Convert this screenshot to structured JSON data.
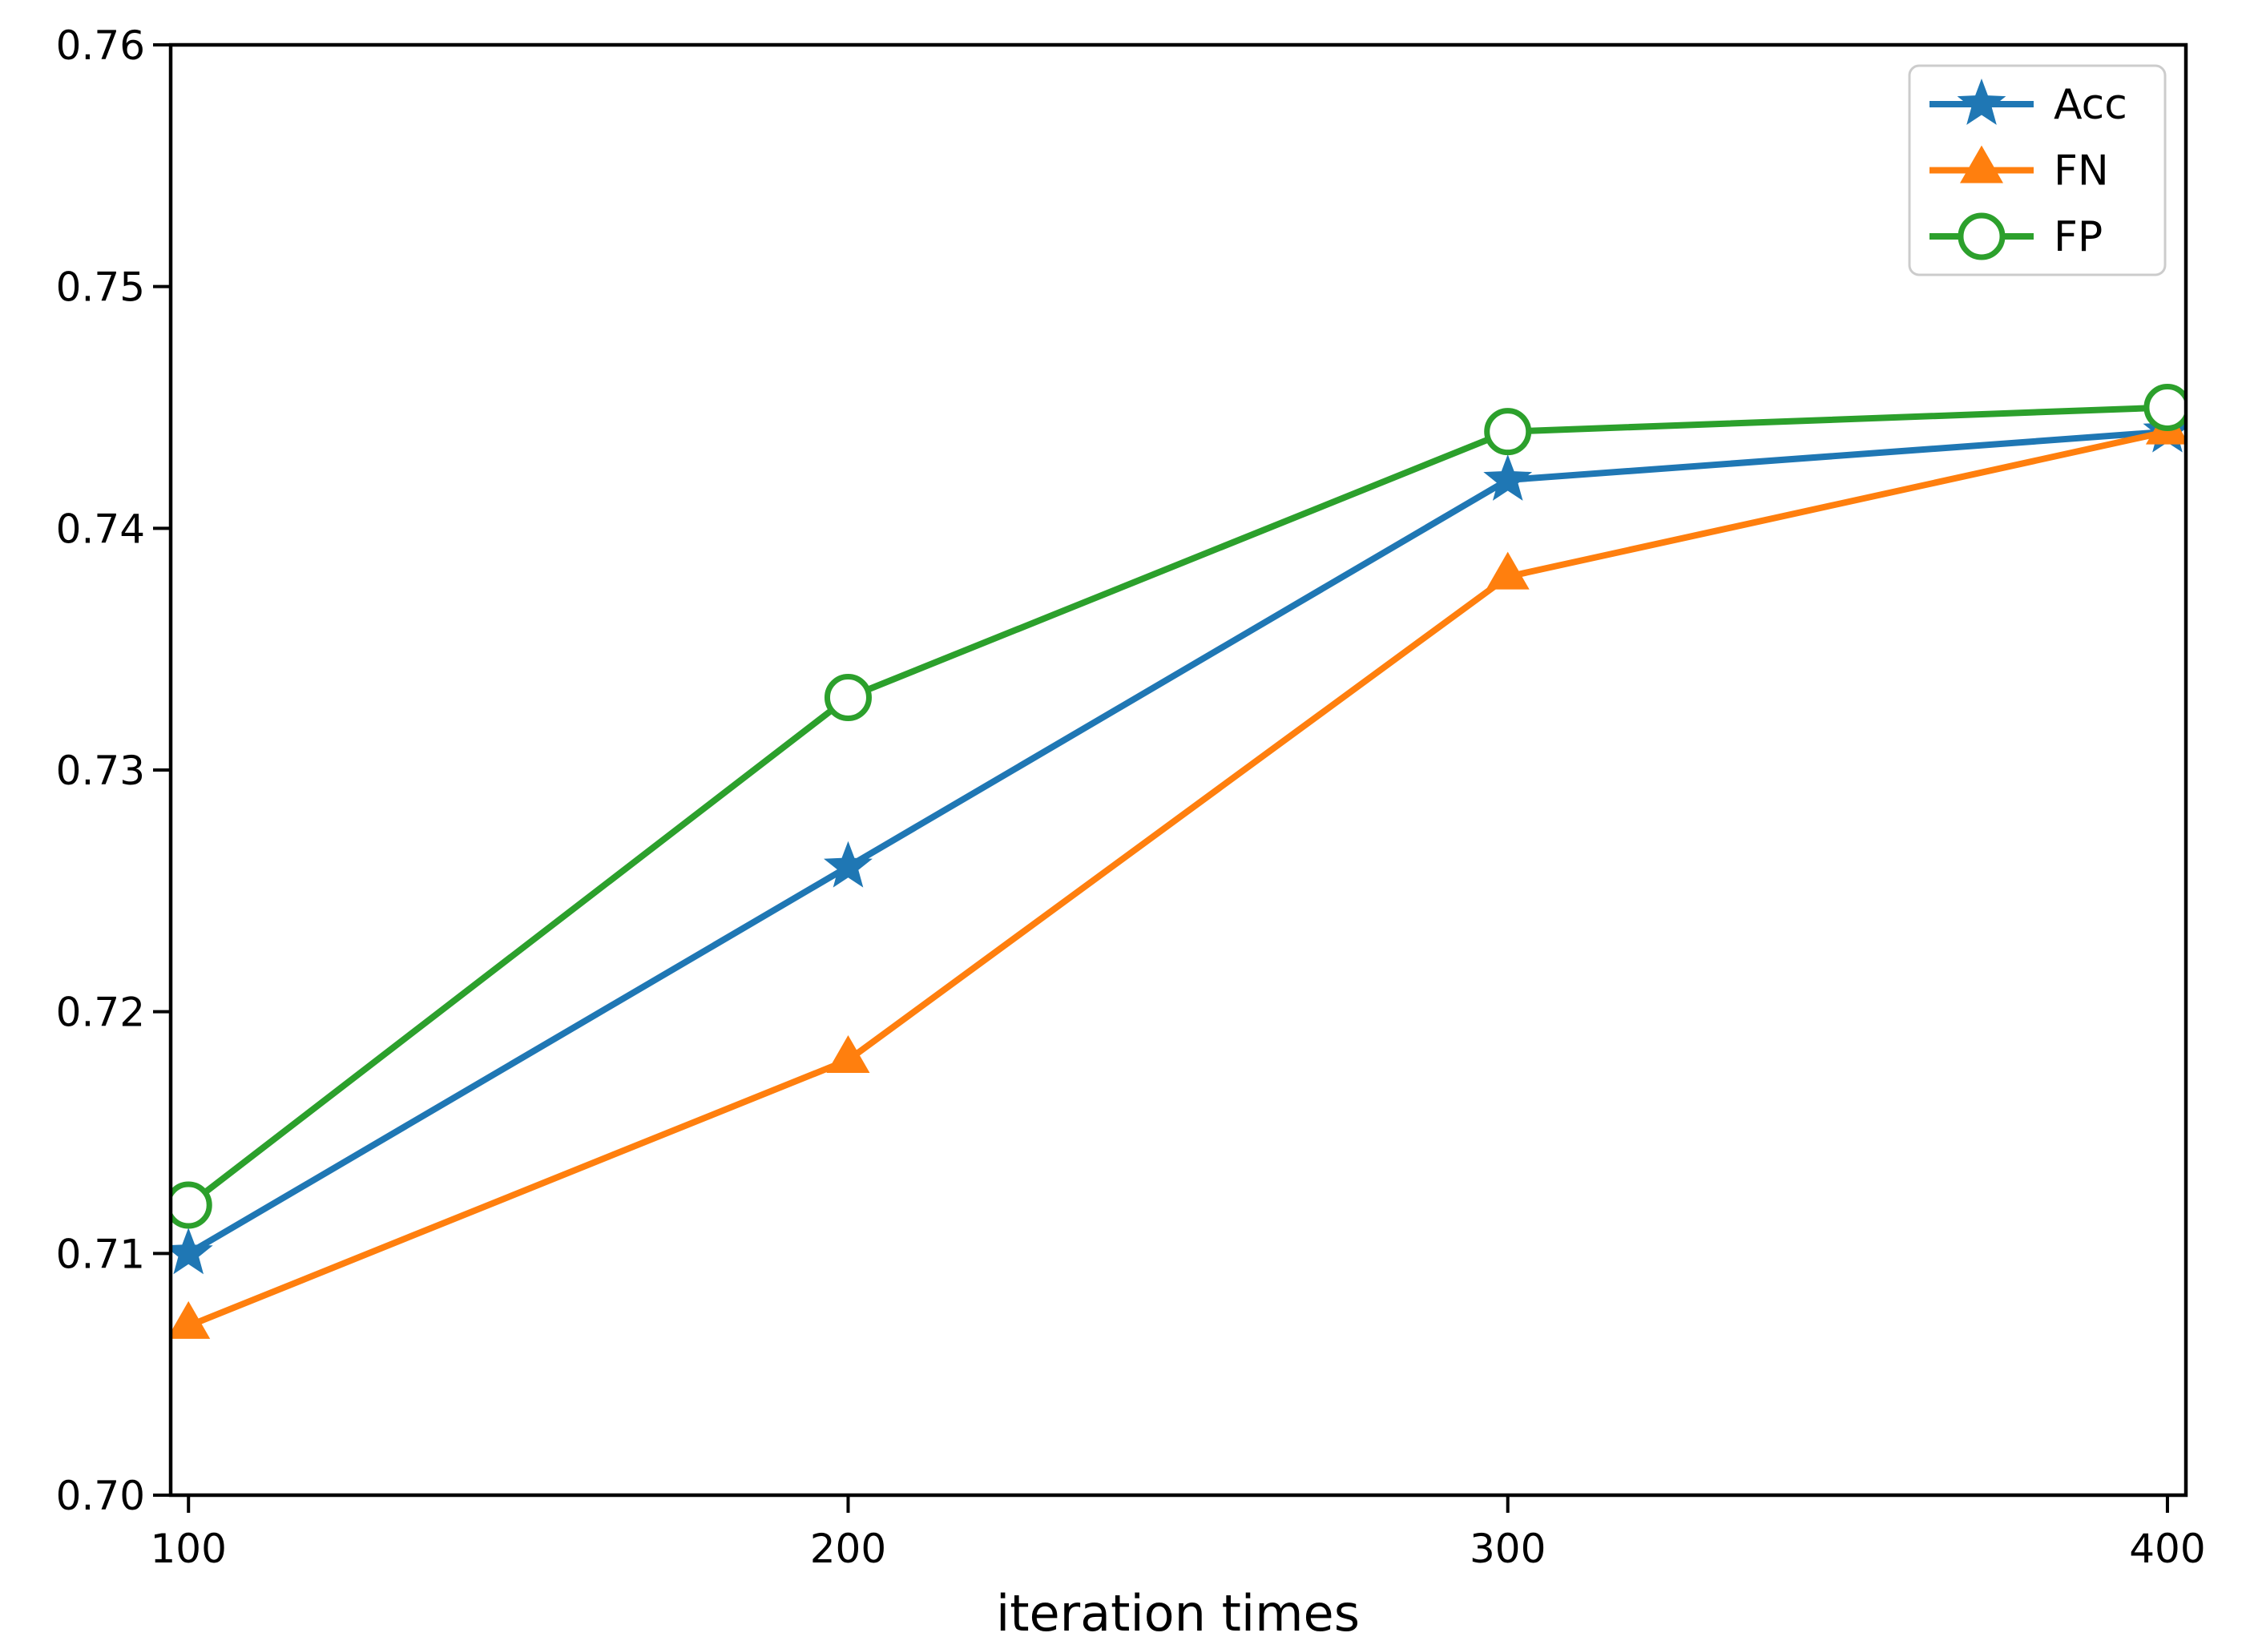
{
  "chart_data": {
    "type": "line",
    "title": "",
    "xlabel": "iteration times",
    "ylabel": "",
    "x": [
      100,
      200,
      300,
      400
    ],
    "series": [
      {
        "name": "Acc",
        "color": "#1f77b4",
        "marker": "star",
        "values": [
          0.71,
          0.726,
          0.742,
          0.744
        ]
      },
      {
        "name": "FN",
        "color": "#ff7f0e",
        "marker": "triangle",
        "values": [
          0.707,
          0.718,
          0.738,
          0.744
        ]
      },
      {
        "name": "FP",
        "color": "#2ca02c",
        "marker": "circle-open",
        "values": [
          0.712,
          0.733,
          0.744,
          0.745
        ]
      }
    ],
    "xlim": [
      97.3,
      402.8
    ],
    "ylim": [
      0.7,
      0.76
    ],
    "xticks": {
      "values": [
        100,
        200,
        300,
        400
      ],
      "labels": [
        "100",
        "200",
        "300",
        "400"
      ]
    },
    "yticks": {
      "values": [
        0.7,
        0.71,
        0.72,
        0.73,
        0.74,
        0.75,
        0.76
      ],
      "labels": [
        "0.70",
        "0.71",
        "0.72",
        "0.73",
        "0.74",
        "0.75",
        "0.76"
      ]
    },
    "grid": false,
    "legend_position": "top-right"
  },
  "colors": {
    "background": "#ffffff",
    "axis": "#000000",
    "tick_text": "#000000",
    "legend_border": "#cccccc",
    "legend_fill": "#ffffff",
    "open_marker_fill": "#ffffff"
  }
}
